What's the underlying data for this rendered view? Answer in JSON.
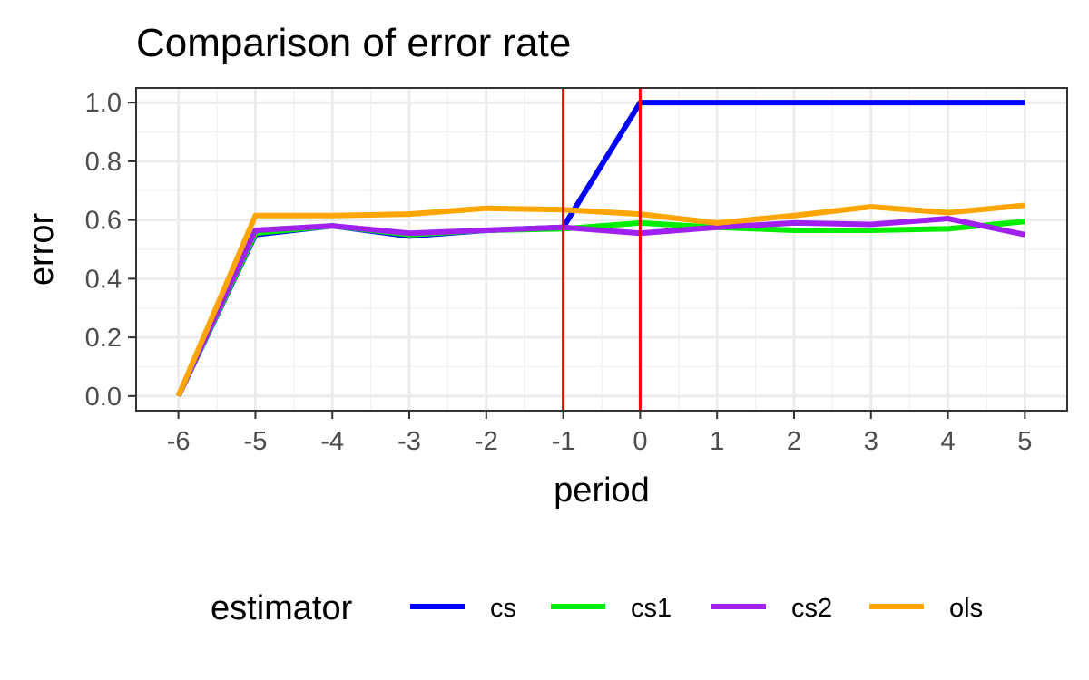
{
  "chart_data": {
    "type": "line",
    "title": "Comparison of error rate",
    "xlabel": "period",
    "ylabel": "error",
    "x": [
      -6,
      -5,
      -4,
      -3,
      -2,
      -1,
      0,
      1,
      2,
      3,
      4,
      5
    ],
    "xlim": [
      -6.55,
      5.55
    ],
    "ylim": [
      -0.05,
      1.05
    ],
    "x_ticks": [
      "-6",
      "-5",
      "-4",
      "-3",
      "-2",
      "-1",
      "0",
      "1",
      "2",
      "3",
      "4",
      "5"
    ],
    "y_ticks": [
      "0.0",
      "0.2",
      "0.4",
      "0.6",
      "0.8",
      "1.0"
    ],
    "y_tick_values": [
      0.0,
      0.2,
      0.4,
      0.6,
      0.8,
      1.0
    ],
    "grid": true,
    "legend": {
      "title": "estimator",
      "position": "bottom"
    },
    "vlines": [
      {
        "x": -1,
        "color": "#ff0000"
      },
      {
        "x": 0,
        "color": "#ff0000"
      }
    ],
    "series": [
      {
        "name": "cs",
        "color": "#0000ff",
        "values": [
          0.0,
          0.55,
          0.58,
          0.545,
          0.565,
          0.575,
          1.0,
          1.0,
          1.0,
          1.0,
          1.0,
          1.0
        ]
      },
      {
        "name": "cs1",
        "color": "#00ee00",
        "values": [
          0.0,
          0.555,
          0.58,
          0.55,
          0.565,
          0.57,
          0.59,
          0.575,
          0.565,
          0.565,
          0.57,
          0.595
        ]
      },
      {
        "name": "cs2",
        "color": "#a020f0",
        "values": [
          0.0,
          0.565,
          0.58,
          0.555,
          0.565,
          0.575,
          0.555,
          0.575,
          0.59,
          0.585,
          0.605,
          0.55
        ]
      },
      {
        "name": "ols",
        "color": "#ffa500",
        "values": [
          0.0,
          0.615,
          0.615,
          0.62,
          0.64,
          0.635,
          0.62,
          0.59,
          0.615,
          0.645,
          0.625,
          0.65
        ]
      }
    ]
  }
}
